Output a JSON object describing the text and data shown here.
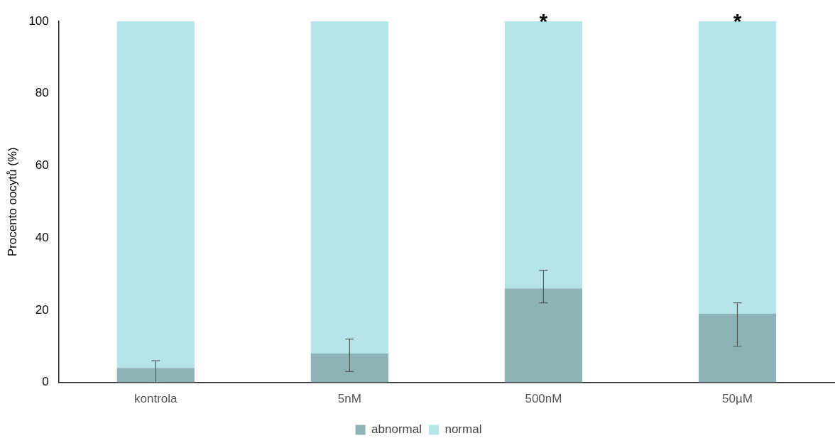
{
  "chart_data": {
    "type": "bar",
    "stacked": true,
    "ylabel": "Procento oocytů (%)",
    "categories": [
      "kontrola",
      "5nM",
      "500nM",
      "50µM"
    ],
    "series": [
      {
        "name": "abnormal",
        "color": "#8eb3b6",
        "values": [
          4,
          8,
          26,
          19
        ],
        "errors": [
          [
            0,
            6
          ],
          [
            3,
            12
          ],
          [
            22,
            31
          ],
          [
            10,
            22
          ]
        ]
      },
      {
        "name": "normal",
        "color": "#b6e5e9",
        "values": [
          96,
          92,
          74,
          81
        ]
      }
    ],
    "ylim": [
      0,
      100
    ],
    "yticks": [
      0,
      20,
      40,
      60,
      80,
      100
    ],
    "grid": false,
    "legend": "bottom",
    "annotations": [
      {
        "text": "*",
        "x": "500nM",
        "y": 100
      },
      {
        "text": "*",
        "x": "50µM",
        "y": 100
      }
    ]
  }
}
